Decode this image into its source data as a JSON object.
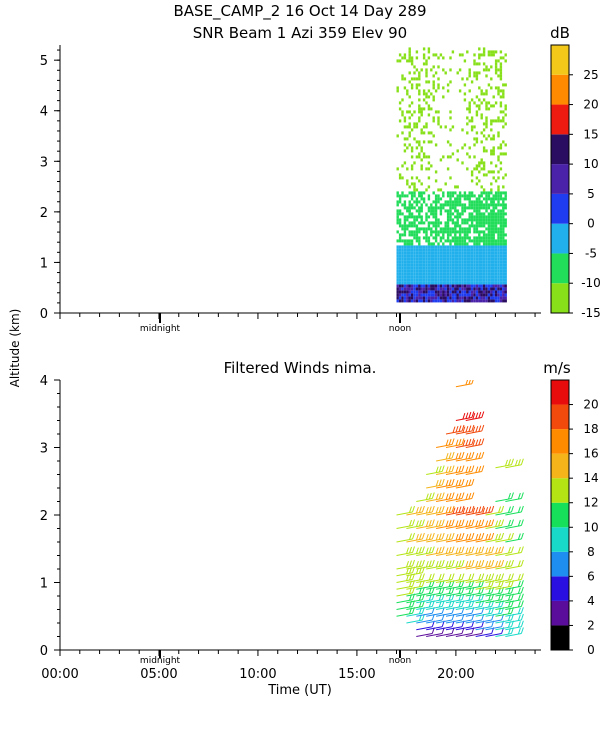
{
  "header": {
    "title_line1": "BASE_CAMP_2  16 Oct 14 Day 289",
    "title_line2": "SNR Beam 1 Azi 359 Elev 90"
  },
  "shared": {
    "ylabel": "Altitude (km)",
    "xlabel": "Time (UT)",
    "x_ticks": [
      "00:00",
      "05:00",
      "10:00",
      "15:00",
      "20:00"
    ],
    "marker_midnight": "midnight",
    "marker_noon": "noon"
  },
  "chart_data": [
    {
      "type": "heatmap",
      "title": "SNR Beam 1 Azi 359 Elev 90",
      "xlabel": "Time (UT)",
      "ylabel": "Altitude (km)",
      "xlim_hours": [
        0,
        24.3
      ],
      "ylim": [
        0,
        5.3
      ],
      "y_ticks": [
        0,
        1,
        2,
        3,
        4,
        5
      ],
      "colorbar": {
        "unit": "dB",
        "range": [
          -15,
          30
        ],
        "ticks": [
          -15,
          -10,
          -5,
          0,
          5,
          10,
          15,
          20,
          25
        ],
        "colors": [
          "#88e01a",
          "#22dd5a",
          "#22b0ec",
          "#1f3cf0",
          "#4a22aa",
          "#2a0c60",
          "#ee1c10",
          "#ff8a00",
          "#f4c81a"
        ]
      },
      "data_extent_hours": [
        17.0,
        22.5
      ],
      "data_extent_km": [
        0.15,
        5.2
      ],
      "layers": [
        {
          "alt_range_km": [
            0.15,
            0.55
          ],
          "snr_db": [
            0,
            15
          ]
        },
        {
          "alt_range_km": [
            0.55,
            1.3
          ],
          "snr_db": [
            -5,
            0
          ]
        },
        {
          "alt_range_km": [
            1.3,
            2.4
          ],
          "snr_db": [
            -10,
            -5
          ]
        },
        {
          "alt_range_km": [
            2.4,
            5.2
          ],
          "snr_db": [
            -15,
            -10
          ]
        }
      ]
    },
    {
      "type": "scatter",
      "title": "Filtered Winds nima.",
      "xlabel": "Time (UT)",
      "ylabel": "Altitude (km)",
      "xlim_hours": [
        0,
        24.3
      ],
      "ylim": [
        0,
        4.0
      ],
      "y_ticks": [
        0,
        1,
        2,
        3,
        4
      ],
      "colorbar": {
        "unit": "m/s",
        "range": [
          0,
          22
        ],
        "ticks": [
          0,
          2,
          4,
          6,
          8,
          10,
          12,
          14,
          16,
          18,
          20
        ],
        "colors": [
          "#000000",
          "#5a0c9a",
          "#2a10e0",
          "#1e8ef0",
          "#18d9c8",
          "#16e05a",
          "#b4e414",
          "#f4b41a",
          "#ff8c00",
          "#f24a0c",
          "#e80c0c"
        ]
      },
      "wind_barbs": [
        {
          "time_h": 17.0,
          "alt_km": [
            0.5,
            0.6,
            0.7,
            0.8,
            0.9,
            1.0,
            1.1,
            1.2,
            1.4,
            1.6,
            1.8,
            2.0
          ],
          "speed_ms": [
            10,
            11,
            11,
            12,
            12,
            13,
            13,
            13,
            13,
            12,
            12,
            12
          ]
        },
        {
          "time_h": 17.5,
          "alt_km": [
            0.4,
            0.5,
            0.6,
            0.7,
            0.8,
            0.9,
            1.0,
            1.1,
            1.2,
            1.4,
            1.6,
            1.8,
            2.0
          ],
          "speed_ms": [
            8,
            9,
            10,
            11,
            11,
            12,
            12,
            13,
            13,
            13,
            14,
            13,
            14
          ]
        },
        {
          "time_h": 18.0,
          "alt_km": [
            0.2,
            0.3,
            0.4,
            0.5,
            0.6,
            0.7,
            0.8,
            0.9,
            1.0,
            1.2,
            1.4,
            1.6,
            1.8,
            2.0,
            2.2
          ],
          "speed_ms": [
            2,
            4,
            6,
            7,
            8,
            9,
            10,
            11,
            12,
            13,
            13,
            14,
            14,
            14,
            13
          ]
        },
        {
          "time_h": 18.5,
          "alt_km": [
            0.2,
            0.3,
            0.4,
            0.5,
            0.6,
            0.7,
            0.8,
            0.9,
            1.0,
            1.2,
            1.4,
            1.6,
            1.8,
            2.0,
            2.2,
            2.4,
            2.6
          ],
          "speed_ms": [
            3,
            4,
            6,
            7,
            8,
            9,
            10,
            11,
            12,
            13,
            14,
            14,
            14,
            15,
            15,
            14,
            13
          ]
        },
        {
          "time_h": 19.0,
          "alt_km": [
            0.2,
            0.3,
            0.4,
            0.5,
            0.6,
            0.7,
            0.8,
            0.9,
            1.0,
            1.2,
            1.4,
            1.6,
            1.8,
            2.0,
            2.2,
            2.4,
            2.6,
            2.8,
            3.0
          ],
          "speed_ms": [
            2,
            4,
            6,
            7,
            8,
            9,
            10,
            11,
            12,
            13,
            14,
            15,
            16,
            16,
            16,
            16,
            15,
            15,
            16
          ]
        },
        {
          "time_h": 19.5,
          "alt_km": [
            0.2,
            0.3,
            0.4,
            0.5,
            0.6,
            0.7,
            0.8,
            0.9,
            1.0,
            1.2,
            1.4,
            1.6,
            1.8,
            2.0,
            2.2,
            2.4,
            2.6,
            2.8,
            3.0,
            3.2
          ],
          "speed_ms": [
            3,
            4,
            6,
            7,
            8,
            9,
            10,
            11,
            12,
            13,
            15,
            16,
            17,
            18,
            17,
            16,
            16,
            16,
            17,
            18
          ]
        },
        {
          "time_h": 20.0,
          "alt_km": [
            0.2,
            0.3,
            0.4,
            0.5,
            0.6,
            0.7,
            0.8,
            0.9,
            1.0,
            1.2,
            1.4,
            1.6,
            1.8,
            2.0,
            2.2,
            2.4,
            2.6,
            2.8,
            3.0,
            3.2,
            3.4,
            3.9
          ],
          "speed_ms": [
            2,
            4,
            6,
            7,
            8,
            9,
            10,
            11,
            12,
            14,
            15,
            16,
            17,
            18,
            17,
            16,
            17,
            17,
            18,
            19,
            20,
            16
          ]
        },
        {
          "time_h": 20.5,
          "alt_km": [
            0.2,
            0.3,
            0.4,
            0.5,
            0.6,
            0.7,
            0.8,
            0.9,
            1.0,
            1.2,
            1.4,
            1.6,
            1.8,
            2.0,
            2.6,
            2.8,
            3.0,
            3.2,
            3.4
          ],
          "speed_ms": [
            3,
            5,
            6,
            7,
            8,
            9,
            10,
            11,
            12,
            14,
            15,
            16,
            17,
            18,
            17,
            17,
            18,
            19,
            20
          ]
        },
        {
          "time_h": 21.0,
          "alt_km": [
            0.2,
            0.3,
            0.4,
            0.5,
            0.6,
            0.7,
            0.8,
            0.9,
            1.0,
            1.2,
            1.4,
            1.6,
            1.8,
            2.0
          ],
          "speed_ms": [
            4,
            6,
            7,
            8,
            9,
            10,
            11,
            12,
            13,
            14,
            15,
            16,
            17,
            18
          ]
        },
        {
          "time_h": 21.5,
          "alt_km": [
            0.2,
            0.3,
            0.4,
            0.5,
            0.6,
            0.7,
            0.8,
            0.9,
            1.0,
            1.2,
            1.4,
            1.6,
            1.8,
            2.0
          ],
          "speed_ms": [
            5,
            6,
            7,
            8,
            9,
            10,
            11,
            12,
            13,
            14,
            14,
            13,
            13,
            12
          ]
        },
        {
          "time_h": 22.0,
          "alt_km": [
            0.2,
            0.3,
            0.4,
            0.5,
            0.6,
            0.7,
            0.8,
            0.9,
            1.0,
            1.2,
            1.4,
            1.6,
            1.8,
            2.0,
            2.2,
            2.7
          ],
          "speed_ms": [
            8,
            8,
            9,
            10,
            10,
            11,
            11,
            12,
            12,
            13,
            12,
            12,
            11,
            11,
            10,
            13
          ]
        },
        {
          "time_h": 22.5,
          "alt_km": [
            0.2,
            0.3,
            0.4,
            0.5,
            0.6,
            0.7,
            0.8,
            0.9,
            1.0,
            1.2,
            1.4,
            1.6,
            1.8,
            2.0,
            2.2,
            2.7
          ],
          "speed_ms": [
            8,
            8,
            9,
            9,
            10,
            10,
            11,
            11,
            12,
            12,
            12,
            11,
            11,
            11,
            10,
            13
          ]
        }
      ]
    }
  ]
}
